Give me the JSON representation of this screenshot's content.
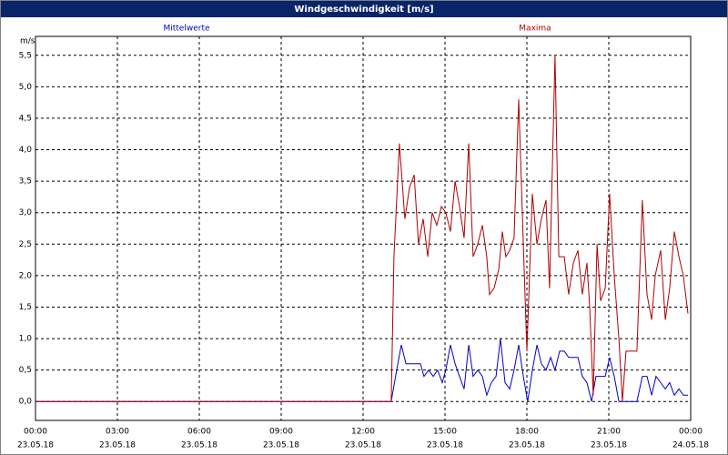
{
  "chart_data": {
    "type": "line",
    "title": "Windgeschwindigkeit [m/s]",
    "y_unit": "m/s",
    "xlim": [
      0,
      24
    ],
    "xticks": [
      {
        "value": 0,
        "label": "00:00"
      },
      {
        "value": 3,
        "label": "03:00"
      },
      {
        "value": 6,
        "label": "06:00"
      },
      {
        "value": 9,
        "label": "09:00"
      },
      {
        "value": 12,
        "label": "12:00"
      },
      {
        "value": 15,
        "label": "15:00"
      },
      {
        "value": 18,
        "label": "18:00"
      },
      {
        "value": 21,
        "label": "21:00"
      },
      {
        "value": 24,
        "label": "00:00"
      }
    ],
    "xtick_dates": [
      "23.05.18",
      "23.05.18",
      "23.05.18",
      "23.05.18",
      "23.05.18",
      "23.05.18",
      "23.05.18",
      "23.05.18",
      "24.05.18"
    ],
    "ylim": [
      -0.3,
      5.8
    ],
    "yticks": [
      {
        "value": 0,
        "label": "0,0"
      },
      {
        "value": 0.5,
        "label": "0,5"
      },
      {
        "value": 1,
        "label": "1,0"
      },
      {
        "value": 1.5,
        "label": "1,5"
      },
      {
        "value": 2,
        "label": "2,0"
      },
      {
        "value": 2.5,
        "label": "2,5"
      },
      {
        "value": 3,
        "label": "3,0"
      },
      {
        "value": 3.5,
        "label": "3,5"
      },
      {
        "value": 4,
        "label": "4,0"
      },
      {
        "value": 4.5,
        "label": "4,5"
      },
      {
        "value": 5,
        "label": "5,0"
      },
      {
        "value": 5.5,
        "label": "5,5"
      }
    ],
    "grid": true,
    "series": [
      {
        "name": "Mittelwerte",
        "color": "#0000c8",
        "x": [
          0,
          13.03,
          13.23,
          13.4,
          13.57,
          13.77,
          13.93,
          14.1,
          14.23,
          14.4,
          14.57,
          14.73,
          14.9,
          15.03,
          15.2,
          15.37,
          15.53,
          15.7,
          15.87,
          16.03,
          16.2,
          16.37,
          16.53,
          16.7,
          16.87,
          17.03,
          17.2,
          17.37,
          17.53,
          17.7,
          17.87,
          18.03,
          18.2,
          18.37,
          18.53,
          18.7,
          18.87,
          19.03,
          19.2,
          19.37,
          19.53,
          19.7,
          19.87,
          20.03,
          20.2,
          20.37,
          20.53,
          20.7,
          20.87,
          21.03,
          21.2,
          21.37,
          21.7,
          22.03,
          22.23,
          22.4,
          22.57,
          22.73,
          22.9,
          23.07,
          23.23,
          23.4,
          23.57,
          23.73,
          23.9
        ],
        "values": [
          0,
          0,
          0.5,
          0.9,
          0.6,
          0.6,
          0.6,
          0.6,
          0.4,
          0.5,
          0.4,
          0.5,
          0.3,
          0.5,
          0.9,
          0.6,
          0.4,
          0.2,
          0.9,
          0.4,
          0.5,
          0.4,
          0.1,
          0.3,
          0.4,
          1.0,
          0.3,
          0.2,
          0.5,
          0.9,
          0.4,
          0,
          0.5,
          0.9,
          0.6,
          0.5,
          0.7,
          0.5,
          0.8,
          0.8,
          0.7,
          0.7,
          0.7,
          0.4,
          0.3,
          0,
          0.4,
          0.4,
          0.4,
          0.7,
          0.4,
          0,
          0,
          0,
          0.4,
          0.4,
          0.1,
          0.4,
          0.3,
          0.2,
          0.3,
          0.1,
          0.2,
          0.1,
          0.1
        ]
      },
      {
        "name": "Maxima",
        "color": "#b00000",
        "x": [
          0,
          13.03,
          13.13,
          13.33,
          13.53,
          13.7,
          13.87,
          14.03,
          14.2,
          14.37,
          14.53,
          14.7,
          14.87,
          15.03,
          15.2,
          15.37,
          15.53,
          15.7,
          15.87,
          16.03,
          16.2,
          16.37,
          16.53,
          16.63,
          16.8,
          16.97,
          17.1,
          17.23,
          17.37,
          17.53,
          17.7,
          17.9,
          18.0,
          18.2,
          18.37,
          18.53,
          18.7,
          18.83,
          19.03,
          19.17,
          19.37,
          19.53,
          19.7,
          19.87,
          20.03,
          20.2,
          20.3,
          20.43,
          20.57,
          20.7,
          20.87,
          21.03,
          21.2,
          21.37,
          21.5,
          21.63,
          21.8,
          22.03,
          22.23,
          22.4,
          22.57,
          22.7,
          22.9,
          23.07,
          23.23,
          23.4,
          23.57,
          23.73,
          23.9
        ],
        "values": [
          0,
          0,
          2.3,
          4.1,
          2.9,
          3.4,
          3.6,
          2.5,
          2.9,
          2.3,
          3.0,
          2.8,
          3.1,
          3.0,
          2.7,
          3.5,
          3.1,
          2.6,
          4.1,
          2.3,
          2.5,
          2.8,
          2.3,
          1.7,
          1.8,
          2.1,
          2.7,
          2.3,
          2.4,
          2.6,
          4.8,
          2.1,
          0.8,
          3.3,
          2.5,
          2.9,
          3.2,
          1.8,
          5.5,
          2.3,
          2.3,
          1.7,
          2.2,
          2.4,
          1.7,
          2.2,
          1.5,
          0.1,
          2.5,
          1.6,
          1.8,
          3.3,
          2.0,
          1.0,
          0,
          0.8,
          0.8,
          0.8,
          3.2,
          1.7,
          1.3,
          2.0,
          2.4,
          1.3,
          1.8,
          2.7,
          2.3,
          2.0,
          1.4
        ]
      }
    ]
  }
}
